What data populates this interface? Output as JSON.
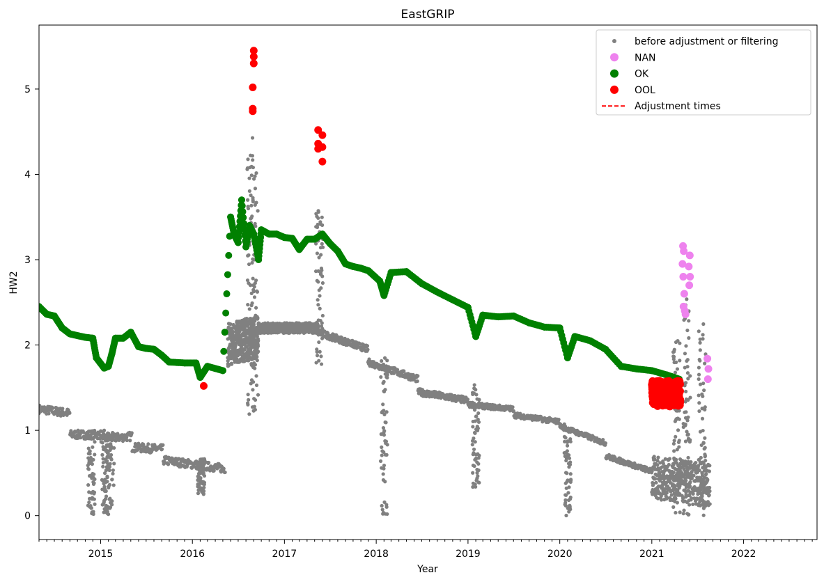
{
  "chart_data": {
    "type": "scatter",
    "title": "EastGRIP",
    "xlabel": "Year",
    "ylabel": "HW2",
    "x_axis_type": "date",
    "xlim": [
      "2014-05-01",
      "2022-10-20"
    ],
    "ylim": [
      -0.28,
      5.75
    ],
    "x_ticks": [
      "2015",
      "2016",
      "2017",
      "2018",
      "2019",
      "2020",
      "2021",
      "2022"
    ],
    "y_ticks": [
      "0",
      "1",
      "2",
      "3",
      "4",
      "5"
    ],
    "grid": false,
    "legend_position": "top-right",
    "series": [
      {
        "name": "before adjustment or filtering",
        "color": "#808080",
        "marker": "small-dot",
        "dense_bands": [
          {
            "x": [
              "2014-05-01",
              "2016-05-10"
            ],
            "y": [
              [
                1.25,
                1.2
              ],
              [
                0.95,
                0.95
              ],
              [
                0.9,
                0.93
              ],
              [
                0.8,
                0.78
              ],
              [
                0.65,
                0.6
              ],
              [
                0.6,
                0.55
              ]
            ],
            "spread": 0.05
          },
          {
            "x": [
              "2016-05-20",
              "2016-09-20"
            ],
            "y": [
              [
                2.0,
                2.1
              ]
            ],
            "spread": 0.25
          },
          {
            "x": [
              "2016-09-20",
              "2017-05-15"
            ],
            "y": [
              [
                2.2,
                2.2
              ]
            ],
            "spread": 0.06
          },
          {
            "x": [
              "2017-05-15",
              "2018-12-31"
            ],
            "y": [
              [
                2.15,
                1.95
              ],
              [
                1.8,
                1.6
              ],
              [
                1.45,
                1.35
              ]
            ],
            "spread": 0.04
          },
          {
            "x": [
              "2019-01-01",
              "2020-12-31"
            ],
            "y": [
              [
                1.3,
                1.25
              ],
              [
                1.18,
                1.1
              ],
              [
                1.05,
                0.85
              ],
              [
                0.7,
                0.52
              ]
            ],
            "spread": 0.03
          },
          {
            "x": [
              "2021-01-01",
              "2021-08-20"
            ],
            "y": [
              [
                0.45,
                0.35
              ]
            ],
            "spread": 0.25
          }
        ],
        "spikes": [
          {
            "x": "2015-01-20",
            "y": [
              0.0,
              1.0
            ]
          },
          {
            "x": "2015-02-10",
            "y": [
              0.0,
              1.0
            ]
          },
          {
            "x": "2014-11-25",
            "y": [
              0.0,
              0.95
            ]
          },
          {
            "x": "2016-02-05",
            "y": [
              0.25,
              0.68
            ]
          },
          {
            "x": "2016-08-20",
            "y": [
              1.1,
              4.45
            ]
          },
          {
            "x": "2016-09-05",
            "y": [
              1.2,
              4.2
            ]
          },
          {
            "x": "2017-05-20",
            "y": [
              1.75,
              3.6
            ]
          },
          {
            "x": "2018-02-01",
            "y": [
              0.0,
              1.85
            ]
          },
          {
            "x": "2019-02-01",
            "y": [
              0.25,
              1.55
            ]
          },
          {
            "x": "2020-02-01",
            "y": [
              0.0,
              1.1
            ]
          },
          {
            "x": "2021-04-10",
            "y": [
              0.0,
              2.05
            ]
          },
          {
            "x": "2021-05-20",
            "y": [
              0.0,
              2.55
            ]
          },
          {
            "x": "2021-07-20",
            "y": [
              0.0,
              2.25
            ]
          }
        ]
      },
      {
        "name": "NAN",
        "color": "#ee82ee",
        "marker": "dot",
        "points": [
          [
            "2021-05-05",
            3.16
          ],
          [
            "2021-05-08",
            3.1
          ],
          [
            "2021-05-03",
            2.95
          ],
          [
            "2021-05-06",
            2.8
          ],
          [
            "2021-05-10",
            2.6
          ],
          [
            "2021-05-07",
            2.45
          ],
          [
            "2021-05-12",
            2.4
          ],
          [
            "2021-05-15",
            2.36
          ],
          [
            "2021-06-01",
            3.05
          ],
          [
            "2021-05-28",
            2.92
          ],
          [
            "2021-06-02",
            2.8
          ],
          [
            "2021-05-30",
            2.7
          ],
          [
            "2021-08-10",
            1.84
          ],
          [
            "2021-08-14",
            1.72
          ],
          [
            "2021-08-12",
            1.6
          ]
        ]
      },
      {
        "name": "OK",
        "color": "#008000",
        "marker": "dot",
        "points": [
          [
            "2014-05-01",
            2.45
          ],
          [
            "2014-06-01",
            2.36
          ],
          [
            "2014-07-01",
            2.34
          ],
          [
            "2014-08-01",
            2.2
          ],
          [
            "2014-09-01",
            2.13
          ],
          [
            "2014-10-01",
            2.11
          ],
          [
            "2014-11-01",
            2.09
          ],
          [
            "2014-12-01",
            2.08
          ],
          [
            "2014-12-15",
            1.85
          ],
          [
            "2015-01-15",
            1.73
          ],
          [
            "2015-02-01",
            1.75
          ],
          [
            "2015-02-15",
            1.9
          ],
          [
            "2015-03-01",
            2.08
          ],
          [
            "2015-04-01",
            2.08
          ],
          [
            "2015-05-01",
            2.15
          ],
          [
            "2015-06-01",
            1.98
          ],
          [
            "2015-07-01",
            1.96
          ],
          [
            "2015-08-01",
            1.95
          ],
          [
            "2015-09-01",
            1.88
          ],
          [
            "2015-10-01",
            1.8
          ],
          [
            "2015-12-01",
            1.79
          ],
          [
            "2016-01-15",
            1.79
          ],
          [
            "2016-02-01",
            1.62
          ],
          [
            "2016-03-01",
            1.75
          ],
          [
            "2016-05-01",
            1.7
          ],
          [
            "2016-06-01",
            3.5
          ],
          [
            "2016-06-15",
            3.3
          ],
          [
            "2016-07-01",
            3.2
          ],
          [
            "2016-07-15",
            3.7
          ],
          [
            "2016-08-01",
            3.15
          ],
          [
            "2016-08-15",
            3.4
          ],
          [
            "2016-09-01",
            3.3
          ],
          [
            "2016-09-20",
            3.0
          ],
          [
            "2016-10-01",
            3.35
          ],
          [
            "2016-11-01",
            3.3
          ],
          [
            "2016-12-01",
            3.3
          ],
          [
            "2017-01-01",
            3.26
          ],
          [
            "2017-02-01",
            3.25
          ],
          [
            "2017-03-01",
            3.12
          ],
          [
            "2017-04-01",
            3.24
          ],
          [
            "2017-05-01",
            3.24
          ],
          [
            "2017-06-01",
            3.3
          ],
          [
            "2017-07-01",
            3.19
          ],
          [
            "2017-08-01",
            3.1
          ],
          [
            "2017-09-01",
            2.95
          ],
          [
            "2017-10-01",
            2.92
          ],
          [
            "2017-11-01",
            2.9
          ],
          [
            "2017-12-01",
            2.87
          ],
          [
            "2018-01-15",
            2.75
          ],
          [
            "2018-02-01",
            2.58
          ],
          [
            "2018-03-01",
            2.85
          ],
          [
            "2018-05-01",
            2.86
          ],
          [
            "2018-07-01",
            2.72
          ],
          [
            "2018-09-01",
            2.62
          ],
          [
            "2018-11-01",
            2.53
          ],
          [
            "2019-01-01",
            2.44
          ],
          [
            "2019-02-01",
            2.1
          ],
          [
            "2019-03-01",
            2.35
          ],
          [
            "2019-05-01",
            2.33
          ],
          [
            "2019-07-01",
            2.34
          ],
          [
            "2019-09-01",
            2.26
          ],
          [
            "2019-11-01",
            2.21
          ],
          [
            "2020-01-01",
            2.2
          ],
          [
            "2020-02-01",
            1.85
          ],
          [
            "2020-03-01",
            2.1
          ],
          [
            "2020-05-01",
            2.05
          ],
          [
            "2020-07-01",
            1.95
          ],
          [
            "2020-09-01",
            1.75
          ],
          [
            "2020-11-01",
            1.72
          ],
          [
            "2021-01-01",
            1.7
          ],
          [
            "2021-03-01",
            1.65
          ],
          [
            "2021-04-20",
            1.6
          ]
        ]
      },
      {
        "name": "OOL",
        "color": "#ff0000",
        "marker": "dot",
        "points": [
          [
            "2016-02-15",
            1.52
          ],
          [
            "2016-09-01",
            5.45
          ],
          [
            "2016-09-01",
            5.38
          ],
          [
            "2016-09-01",
            5.3
          ],
          [
            "2016-08-28",
            5.02
          ],
          [
            "2016-08-28",
            4.77
          ],
          [
            "2016-08-28",
            4.74
          ],
          [
            "2017-05-15",
            4.52
          ],
          [
            "2017-06-01",
            4.46
          ],
          [
            "2017-05-15",
            4.36
          ],
          [
            "2017-05-15",
            4.3
          ],
          [
            "2017-06-01",
            4.32
          ],
          [
            "2017-06-01",
            4.15
          ]
        ],
        "block": {
          "x": [
            "2021-01-01",
            "2021-04-25"
          ],
          "y": [
            1.28,
            1.58
          ]
        }
      },
      {
        "name": "Adjustment times",
        "color": "#ff0000",
        "marker": "dashed-line",
        "points": []
      }
    ]
  }
}
